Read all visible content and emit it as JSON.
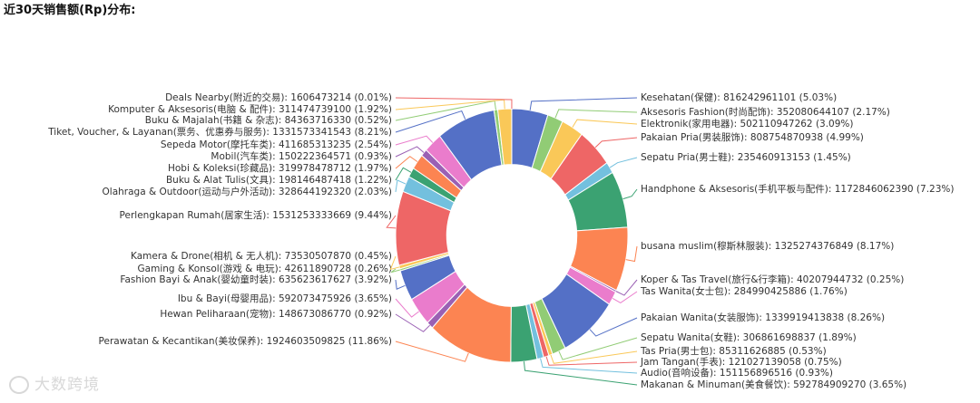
{
  "chart_data": {
    "type": "pie",
    "variant": "donut",
    "title": "近30天销售额(Rp)分布:",
    "slices": [
      {
        "label": "Kesehatan(保健): 816242961101 (5.03%)",
        "value": 5.03,
        "color": "#5470c6"
      },
      {
        "label": "Aksesoris Fashion(时尚配饰): 352080644107 (2.17%)",
        "value": 2.17,
        "color": "#91cc75"
      },
      {
        "label": "Elektronik(家用电器): 502110947262 (3.09%)",
        "value": 3.09,
        "color": "#fac858"
      },
      {
        "label": "Pakaian Pria(男装服饰): 808754870938 (4.99%)",
        "value": 4.99,
        "color": "#ee6666"
      },
      {
        "label": "Sepatu Pria(男士鞋): 235460913153 (1.45%)",
        "value": 1.45,
        "color": "#73c0de"
      },
      {
        "label": "Handphone & Aksesoris(手机平板与配件): 1172846062390 (7.23%)",
        "value": 7.23,
        "color": "#3ba272"
      },
      {
        "label": "busana muslim(穆斯林服装): 1325274376849 (8.17%)",
        "value": 8.17,
        "color": "#fc8452"
      },
      {
        "label": "Koper & Tas Travel(旅行&行李箱): 40207944732 (0.25%)",
        "value": 0.25,
        "color": "#9a60b4"
      },
      {
        "label": "Tas Wanita(女士包): 284990425886 (1.76%)",
        "value": 1.76,
        "color": "#ea7ccc"
      },
      {
        "label": "Pakaian Wanita(女装服饰): 1339919413838 (8.26%)",
        "value": 8.26,
        "color": "#5470c6"
      },
      {
        "label": "Sepatu Wanita(女鞋): 306861698837 (1.89%)",
        "value": 1.89,
        "color": "#91cc75"
      },
      {
        "label": "Tas Pria(男士包): 85311626885 (0.53%)",
        "value": 0.53,
        "color": "#fac858"
      },
      {
        "label": "Jam Tangan(手表): 121027139058 (0.75%)",
        "value": 0.75,
        "color": "#ee6666"
      },
      {
        "label": "Audio(音响设备): 151156896516 (0.93%)",
        "value": 0.93,
        "color": "#73c0de"
      },
      {
        "label": "Makanan & Minuman(美食餐饮): 592784909270 (3.65%)",
        "value": 3.65,
        "color": "#3ba272"
      },
      {
        "label": "Perawatan & Kecantikan(美妆保养): 1924603509825 (11.86%)",
        "value": 11.86,
        "color": "#fc8452"
      },
      {
        "label": "Hewan Peliharaan(宠物): 148673086770 (0.92%)",
        "value": 0.92,
        "color": "#9a60b4"
      },
      {
        "label": "Ibu & Bayi(母婴用品): 592073475926 (3.65%)",
        "value": 3.65,
        "color": "#ea7ccc"
      },
      {
        "label": "Fashion Bayi & Anak(婴幼童时装): 635623617627 (3.92%)",
        "value": 3.92,
        "color": "#5470c6"
      },
      {
        "label": "Gaming & Konsol(游戏 & 电玩): 42611890728 (0.26%)",
        "value": 0.26,
        "color": "#91cc75"
      },
      {
        "label": "Kamera & Drone(相机 & 无人机): 73530507870 (0.45%)",
        "value": 0.45,
        "color": "#fac858"
      },
      {
        "label": "Perlengkapan Rumah(居家生活): 1531253333669 (9.44%)",
        "value": 9.44,
        "color": "#ee6666"
      },
      {
        "label": "Olahraga & Outdoor(运动与户外活动): 328644192320 (2.03%)",
        "value": 2.03,
        "color": "#73c0de"
      },
      {
        "label": "Buku & Alat Tulis(文具): 198146487418 (1.22%)",
        "value": 1.22,
        "color": "#3ba272"
      },
      {
        "label": "Hobi & Koleksi(珍藏品): 319978478712 (1.97%)",
        "value": 1.97,
        "color": "#fc8452"
      },
      {
        "label": "Mobil(汽车类): 150222364571 (0.93%)",
        "value": 0.93,
        "color": "#9a60b4"
      },
      {
        "label": "Sepeda Motor(摩托车类): 411685313235 (2.54%)",
        "value": 2.54,
        "color": "#ea7ccc"
      },
      {
        "label": "Tiket, Voucher, & Layanan(票务、优惠券与服务): 1331573341543 (8.21%)",
        "value": 8.21,
        "color": "#5470c6"
      },
      {
        "label": "Buku & Majalah(书籍 & 杂志): 84363716330 (0.52%)",
        "value": 0.52,
        "color": "#91cc75"
      },
      {
        "label": "Komputer & Aksesoris(电脑 & 配件): 311474739100 (1.92%)",
        "value": 1.92,
        "color": "#fac858"
      },
      {
        "label": "Deals Nearby(附近的交易): 1606473214 (0.01%)",
        "value": 0.01,
        "color": "#ee6666"
      }
    ]
  },
  "watermark": "大数跨境"
}
